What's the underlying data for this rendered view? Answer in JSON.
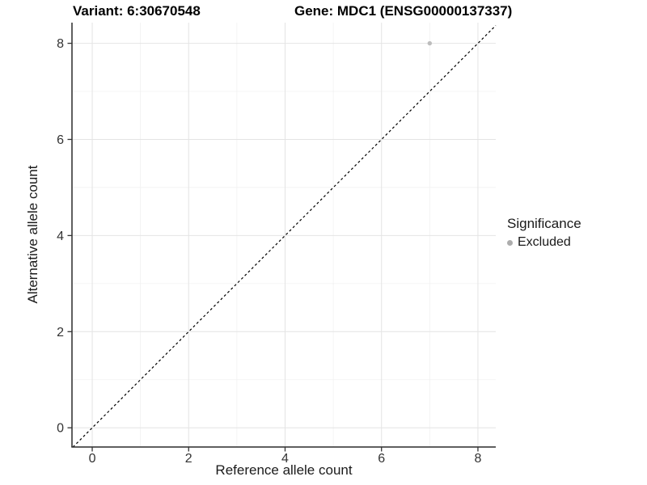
{
  "figure": {
    "titles": {
      "left": "Variant: 6:30670548",
      "right": "Gene: MDC1 (ENSG00000137337)"
    },
    "axes": {
      "x": {
        "label": "Reference allele count"
      },
      "y": {
        "label": "Alternative allele count"
      }
    },
    "legend": {
      "title": "Significance",
      "items": [
        {
          "label": "Excluded",
          "color": "#b5b5b5"
        }
      ]
    }
  },
  "colors": {
    "background": "#ffffff",
    "point": "#bdbdbd",
    "legend_point": "#adadad",
    "grid_major": "#e4e4e4",
    "grid_minor": "#f1f1f1",
    "axis_line": "#2b2b2b",
    "tick_mark": "#333333",
    "tick_label": "#333333",
    "identity_line": "#000000"
  },
  "chart_data": {
    "type": "scatter",
    "title": "Variant: 6:30670548   Gene: MDC1 (ENSG00000137337)",
    "xlabel": "Reference allele count",
    "ylabel": "Alternative allele count",
    "xlim": [
      -0.42,
      8.37
    ],
    "ylim": [
      -0.4,
      8.43
    ],
    "x_ticks": [
      0,
      2,
      4,
      6,
      8
    ],
    "y_ticks": [
      0,
      2,
      4,
      6,
      8
    ],
    "x_minor_ticks": [
      1,
      3,
      5,
      7
    ],
    "y_minor_ticks": [
      1,
      3,
      5,
      7
    ],
    "grid": true,
    "reference_line": {
      "type": "identity",
      "equation": "y = x",
      "style": "dashed",
      "color": "#000000"
    },
    "series": [
      {
        "name": "Excluded",
        "color": "#bdbdbd",
        "points": [
          {
            "x": 7,
            "y": 8
          }
        ]
      }
    ],
    "legend": {
      "title": "Significance",
      "position": "right",
      "entries": [
        "Excluded"
      ]
    }
  }
}
